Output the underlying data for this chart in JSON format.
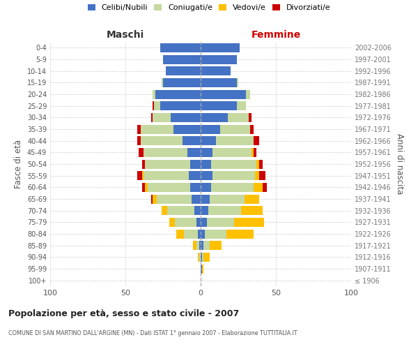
{
  "age_groups": [
    "100+",
    "95-99",
    "90-94",
    "85-89",
    "80-84",
    "75-79",
    "70-74",
    "65-69",
    "60-64",
    "55-59",
    "50-54",
    "45-49",
    "40-44",
    "35-39",
    "30-34",
    "25-29",
    "20-24",
    "15-19",
    "10-14",
    "5-9",
    "0-4"
  ],
  "birth_years": [
    "≤ 1906",
    "1907-1911",
    "1912-1916",
    "1917-1921",
    "1922-1926",
    "1927-1931",
    "1932-1936",
    "1937-1941",
    "1942-1946",
    "1947-1951",
    "1952-1956",
    "1957-1961",
    "1962-1966",
    "1967-1971",
    "1972-1976",
    "1977-1981",
    "1982-1986",
    "1987-1991",
    "1992-1996",
    "1997-2001",
    "2002-2006"
  ],
  "colors": {
    "celibi": "#4472c4",
    "coniugati": "#c5d9a0",
    "vedovi": "#ffc000",
    "divorziati": "#cc0000"
  },
  "maschi": {
    "celibi": [
      0,
      0,
      0,
      1,
      2,
      3,
      4,
      6,
      7,
      8,
      7,
      9,
      12,
      18,
      20,
      27,
      30,
      25,
      23,
      25,
      27
    ],
    "coniugati": [
      0,
      0,
      1,
      2,
      9,
      14,
      18,
      23,
      28,
      30,
      30,
      29,
      28,
      22,
      12,
      4,
      2,
      1,
      0,
      0,
      0
    ],
    "vedovi": [
      0,
      0,
      1,
      2,
      5,
      4,
      4,
      3,
      2,
      1,
      0,
      0,
      0,
      0,
      0,
      0,
      0,
      0,
      0,
      0,
      0
    ],
    "divorziati": [
      0,
      0,
      0,
      0,
      0,
      0,
      0,
      1,
      2,
      3,
      2,
      3,
      2,
      2,
      1,
      1,
      0,
      0,
      0,
      0,
      0
    ]
  },
  "femmine": {
    "celibi": [
      0,
      1,
      1,
      2,
      3,
      4,
      5,
      6,
      7,
      8,
      7,
      8,
      10,
      13,
      18,
      24,
      30,
      24,
      20,
      24,
      26
    ],
    "coniugati": [
      0,
      0,
      1,
      4,
      14,
      18,
      22,
      23,
      28,
      28,
      30,
      26,
      25,
      20,
      14,
      6,
      3,
      1,
      0,
      0,
      0
    ],
    "vedovi": [
      0,
      1,
      4,
      8,
      18,
      20,
      14,
      10,
      6,
      3,
      2,
      1,
      0,
      0,
      0,
      0,
      0,
      0,
      0,
      0,
      0
    ],
    "divorziati": [
      0,
      0,
      0,
      0,
      0,
      0,
      0,
      0,
      3,
      4,
      2,
      2,
      4,
      2,
      2,
      0,
      0,
      0,
      0,
      0,
      0
    ]
  },
  "title": "Popolazione per età, sesso e stato civile - 2007",
  "subtitle": "COMUNE DI SAN MARTINO DALL'ARGINE (MN) - Dati ISTAT 1° gennaio 2007 - Elaborazione TUTTITALIA.IT",
  "ylabel": "Fasce di età",
  "ylabel_right": "Anni di nascita",
  "xlabel_maschi": "Maschi",
  "xlabel_femmine": "Femmine",
  "xlim": 100,
  "background_color": "#ffffff",
  "legend_labels": [
    "Celibi/Nubili",
    "Coniugati/e",
    "Vedovi/e",
    "Divorziati/e"
  ]
}
